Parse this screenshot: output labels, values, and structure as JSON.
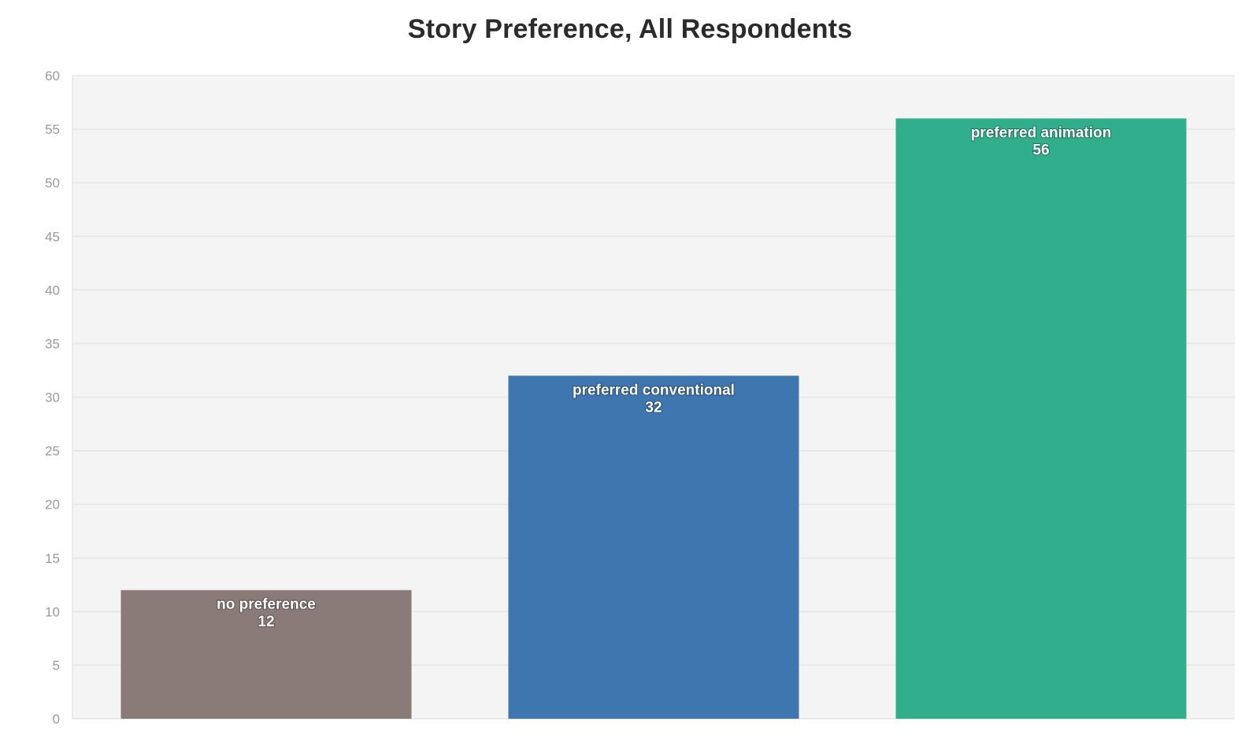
{
  "chart_data": {
    "type": "bar",
    "title": "Story Preference, All Respondents",
    "xlabel": "",
    "ylabel": "",
    "ylim": [
      0,
      60
    ],
    "yticks": [
      0,
      5,
      10,
      15,
      20,
      25,
      30,
      35,
      40,
      45,
      50,
      55,
      60
    ],
    "grid": true,
    "legend": "none",
    "categories": [
      "no preference",
      "preferred conventional",
      "preferred animation"
    ],
    "values": [
      12,
      32,
      56
    ],
    "colors": [
      "#8a7a78",
      "#3e76b0",
      "#31ae8c"
    ],
    "plot_background": "#f4f4f4"
  }
}
